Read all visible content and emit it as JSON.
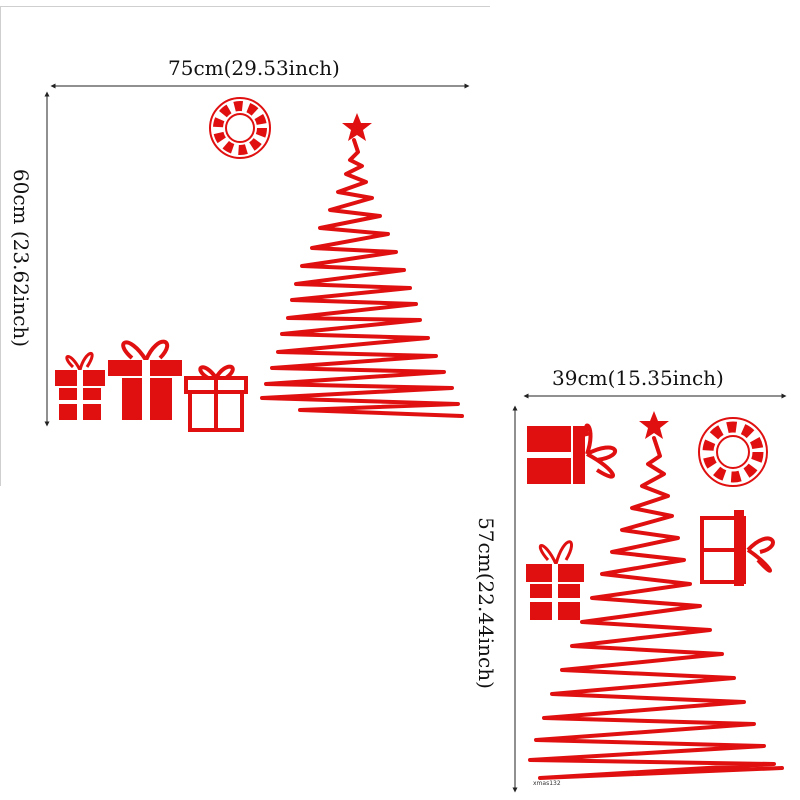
{
  "accent_color": "#e01010",
  "line_color": "#222222",
  "set_a": {
    "width_label": "75cm(29.53inch)",
    "height_label": "60cm (23.62inch)",
    "items": [
      "wreath-icon",
      "christmas-tree-icon",
      "star-icon",
      "gift-box-icon",
      "gift-box-icon",
      "gift-box-outline-icon"
    ]
  },
  "set_b": {
    "width_label": "39cm(15.35inch)",
    "height_label": "57cm(22.44inch)",
    "product_code": "xmas132",
    "items": [
      "christmas-tree-icon",
      "star-icon",
      "wreath-icon",
      "gift-box-icon",
      "gift-box-icon",
      "gift-box-outline-icon"
    ]
  }
}
